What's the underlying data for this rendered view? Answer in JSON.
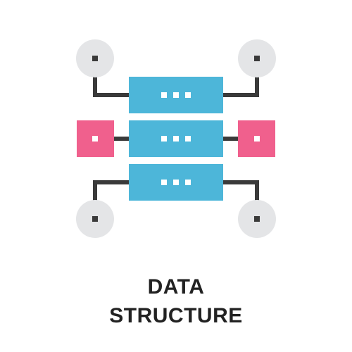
{
  "title": {
    "line1": "DATA",
    "line2": "STRUCTURE"
  },
  "icon": {
    "name": "data-structure-icon",
    "parts": [
      "server-rack",
      "corner-nodes",
      "side-connectors"
    ]
  },
  "colors": {
    "server": "#4db6d9",
    "server_dots": "#ffffff",
    "side_nodes": "#f0608d",
    "corner_nodes": "#e4e5e7",
    "lines": "#3a3a3a",
    "text": "#222222"
  }
}
